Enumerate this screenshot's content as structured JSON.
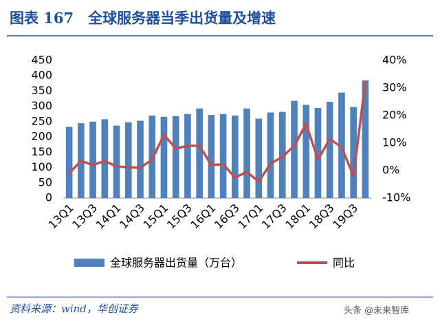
{
  "header": {
    "title": "图表 167　全球服务器当季出货量及增速"
  },
  "chart_data": {
    "type": "bar-line",
    "categories": [
      "13Q1",
      null,
      "13Q3",
      null,
      "14Q1",
      null,
      "14Q3",
      null,
      "15Q1",
      null,
      "15Q3",
      null,
      "16Q1",
      null,
      "16Q3",
      null,
      "17Q1",
      null,
      "17Q3",
      null,
      "18Q1",
      null,
      "18Q3",
      null,
      "19Q3",
      null
    ],
    "series": [
      {
        "name": "全球服务器出货量（万台）",
        "color": "#4f81bd",
        "kind": "bar",
        "values": [
          233,
          245,
          250,
          258,
          237,
          248,
          253,
          270,
          266,
          268,
          275,
          293,
          272,
          275,
          270,
          293,
          260,
          280,
          282,
          318,
          305,
          295,
          315,
          345,
          298,
          385
        ]
      },
      {
        "name": "同比",
        "color": "#c0504d",
        "kind": "line",
        "axis": "y2",
        "values": [
          -1,
          3.5,
          2,
          3.5,
          1.5,
          1.2,
          1,
          4,
          13,
          8,
          9,
          9,
          2,
          2.3,
          -2.5,
          -0.5,
          -4,
          2.5,
          5,
          9,
          17,
          4,
          11.5,
          8.5,
          -2,
          32.5
        ]
      }
    ],
    "ylim": [
      0,
      450
    ],
    "yticks": [
      0,
      50,
      100,
      150,
      200,
      250,
      300,
      350,
      400,
      450
    ],
    "y2lim": [
      -10,
      40
    ],
    "y2ticks": [
      {
        "value": -10,
        "label": "-10%"
      },
      {
        "value": 0,
        "label": "0%"
      },
      {
        "value": 10,
        "label": "10%"
      },
      {
        "value": 20,
        "label": "20%"
      },
      {
        "value": 30,
        "label": "30%"
      },
      {
        "value": 40,
        "label": "40%"
      }
    ],
    "legend": "bottom"
  },
  "footer": {
    "source": "资料来源：wind，华创证券",
    "watermark": "头条 @未来智库"
  }
}
